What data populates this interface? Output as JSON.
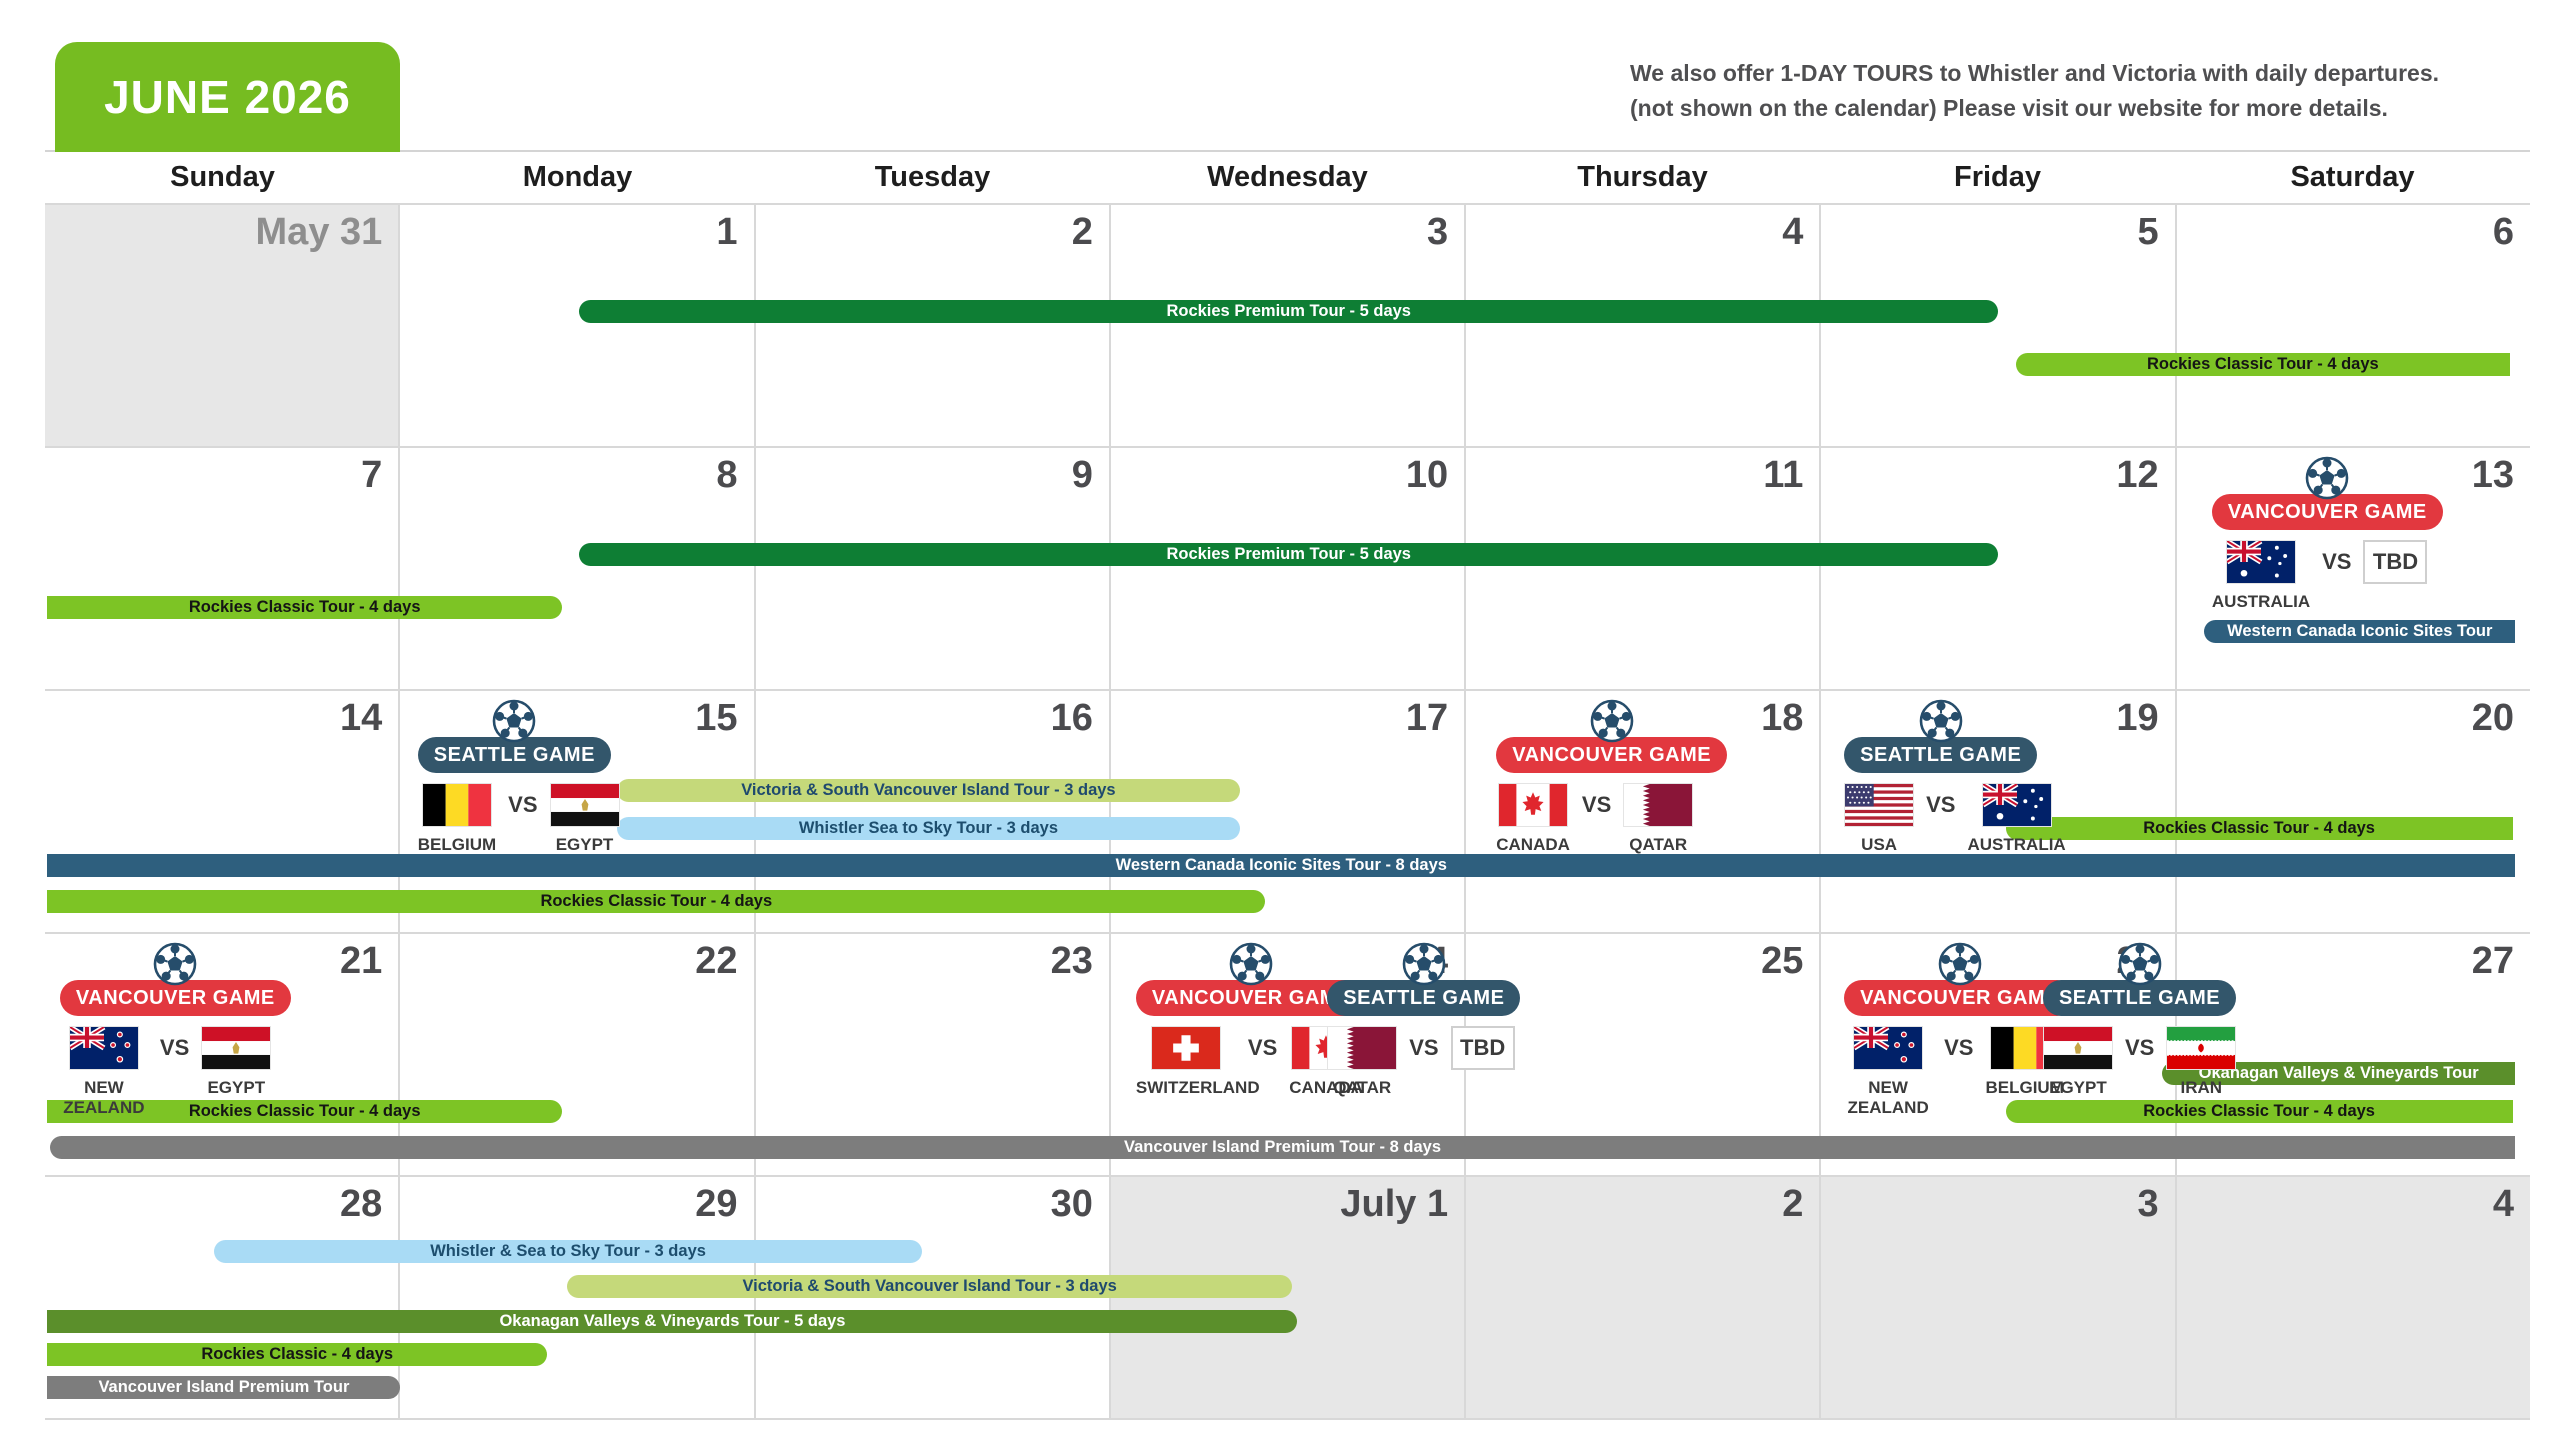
{
  "title": "JUNE 2026",
  "note_line1": "We also offer 1-DAY TOURS to Whistler and Victoria with daily departures.",
  "note_line2": "(not shown on the calendar) Please visit our website for more details.",
  "weekdays": [
    "Sunday",
    "Monday",
    "Tuesday",
    "Wednesday",
    "Thursday",
    "Friday",
    "Saturday"
  ],
  "dates": {
    "w1": [
      "May 31",
      "1",
      "2",
      "3",
      "4",
      "5",
      "6"
    ],
    "w2": [
      "7",
      "8",
      "9",
      "10",
      "11",
      "12",
      "13"
    ],
    "w3": [
      "14",
      "15",
      "16",
      "17",
      "18",
      "19",
      "20"
    ],
    "w4": [
      "21",
      "22",
      "23",
      "24",
      "25",
      "26",
      "27"
    ],
    "w5": [
      "28",
      "29",
      "30",
      "July 1",
      "2",
      "3",
      "4"
    ]
  },
  "bars": {
    "w1_premium": "Rockies Premium Tour - 5 days",
    "w1_classic": "Rockies Classic Tour - 4 days",
    "w2_classic": "Rockies Classic Tour - 4 days",
    "w2_premium": "Rockies Premium Tour - 5 days",
    "w2_western": "Western Canada Iconic Sites Tour",
    "w3_victoria": "Victoria & South Vancouver Island Tour - 3 days",
    "w3_whistler": "Whistler Sea to Sky Tour - 3 days",
    "w3_classic_right": "Rockies Classic Tour - 4 days",
    "w3_western": "Western Canada Iconic Sites Tour - 8 days",
    "w3_classic_left": "Rockies Classic Tour - 4 days",
    "w4_okanagan": "Okanagan Valleys & Vineyards Tour",
    "w4_classic_left": "Rockies Classic Tour - 4 days",
    "w4_classic_right": "Rockies Classic Tour - 4 days",
    "w4_island": "Vancouver Island Premium Tour - 8 days",
    "w5_whistler": "Whistler & Sea to Sky Tour - 3 days",
    "w5_victoria": "Victoria & South Vancouver Island Tour - 3 days",
    "w5_okanagan": "Okanagan Valleys & Vineyards Tour - 5 days",
    "w5_classic": "Rockies Classic - 4 days",
    "w5_island": "Vancouver Island Premium Tour"
  },
  "games": {
    "jun13": {
      "badge": "VANCOUVER GAME",
      "vs": "VS",
      "t1_label": "AUSTRALIA",
      "t2_box": "TBD"
    },
    "jun15": {
      "badge": "SEATTLE GAME",
      "vs": "VS",
      "t1_label": "BELGIUM",
      "t2_label": "EGYPT"
    },
    "jun18": {
      "badge": "VANCOUVER GAME",
      "vs": "VS",
      "t1_label": "CANADA",
      "t2_label": "QATAR"
    },
    "jun19": {
      "badge": "SEATTLE GAME",
      "vs": "VS",
      "t1_label": "USA",
      "t2_label": "AUSTRALIA"
    },
    "jun21": {
      "badge": "VANCOUVER GAME",
      "vs": "VS",
      "t1_label": "NEW ZEALAND",
      "t2_label": "EGYPT"
    },
    "jun24_van": {
      "badge": "VANCOUVER GAME",
      "vs": "VS",
      "t1_label": "SWITZERLAND",
      "t2_label": "CANADA"
    },
    "jun24_sea": {
      "badge": "SEATTLE GAME",
      "vs": "VS",
      "t1_label": "QATAR",
      "t2_box": "TBD"
    },
    "jun26_van": {
      "badge": "VANCOUVER GAME",
      "vs": "VS",
      "t1_label": "NEW ZEALAND",
      "t2_label": "BELGIUM"
    },
    "jun26_sea": {
      "badge": "SEATTLE GAME",
      "vs": "VS",
      "t1_label": "EGYPT",
      "t2_label": "IRAN"
    }
  },
  "colors": {
    "header_green": "#76BC21",
    "premium_green": "#0E7E34",
    "classic_green": "#7DC425",
    "victoria_green": "#C5D97A",
    "whistler_blue": "#A9DBF5",
    "western_blue": "#2E5F7E",
    "okanagan_green": "#5B8F2B",
    "island_grey": "#7D7D7D",
    "vancouver_badge_red": "#E2383F",
    "seattle_badge_navy": "#33566B",
    "off_cell_grey": "#E7E7E7"
  }
}
